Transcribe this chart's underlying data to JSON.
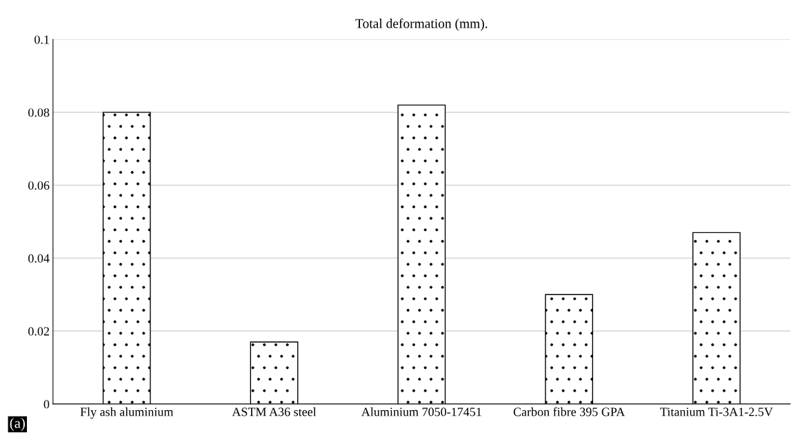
{
  "chart_data": {
    "type": "bar",
    "title": "Total deformation (mm).",
    "categories": [
      "Fly ash aluminium",
      "ASTM A36 steel",
      "Aluminium 7050-17451",
      "Carbon fibre 395 GPA",
      "Titanium Ti-3A1-2.5V"
    ],
    "values": [
      0.08,
      0.017,
      0.082,
      0.03,
      0.047
    ],
    "color": "#ffffff",
    "ylim": [
      0,
      0.1
    ],
    "yticks": [
      0,
      0.02,
      0.04,
      0.06,
      0.08,
      0.1
    ],
    "grid": "y",
    "annotations": [
      "(a)"
    ]
  }
}
